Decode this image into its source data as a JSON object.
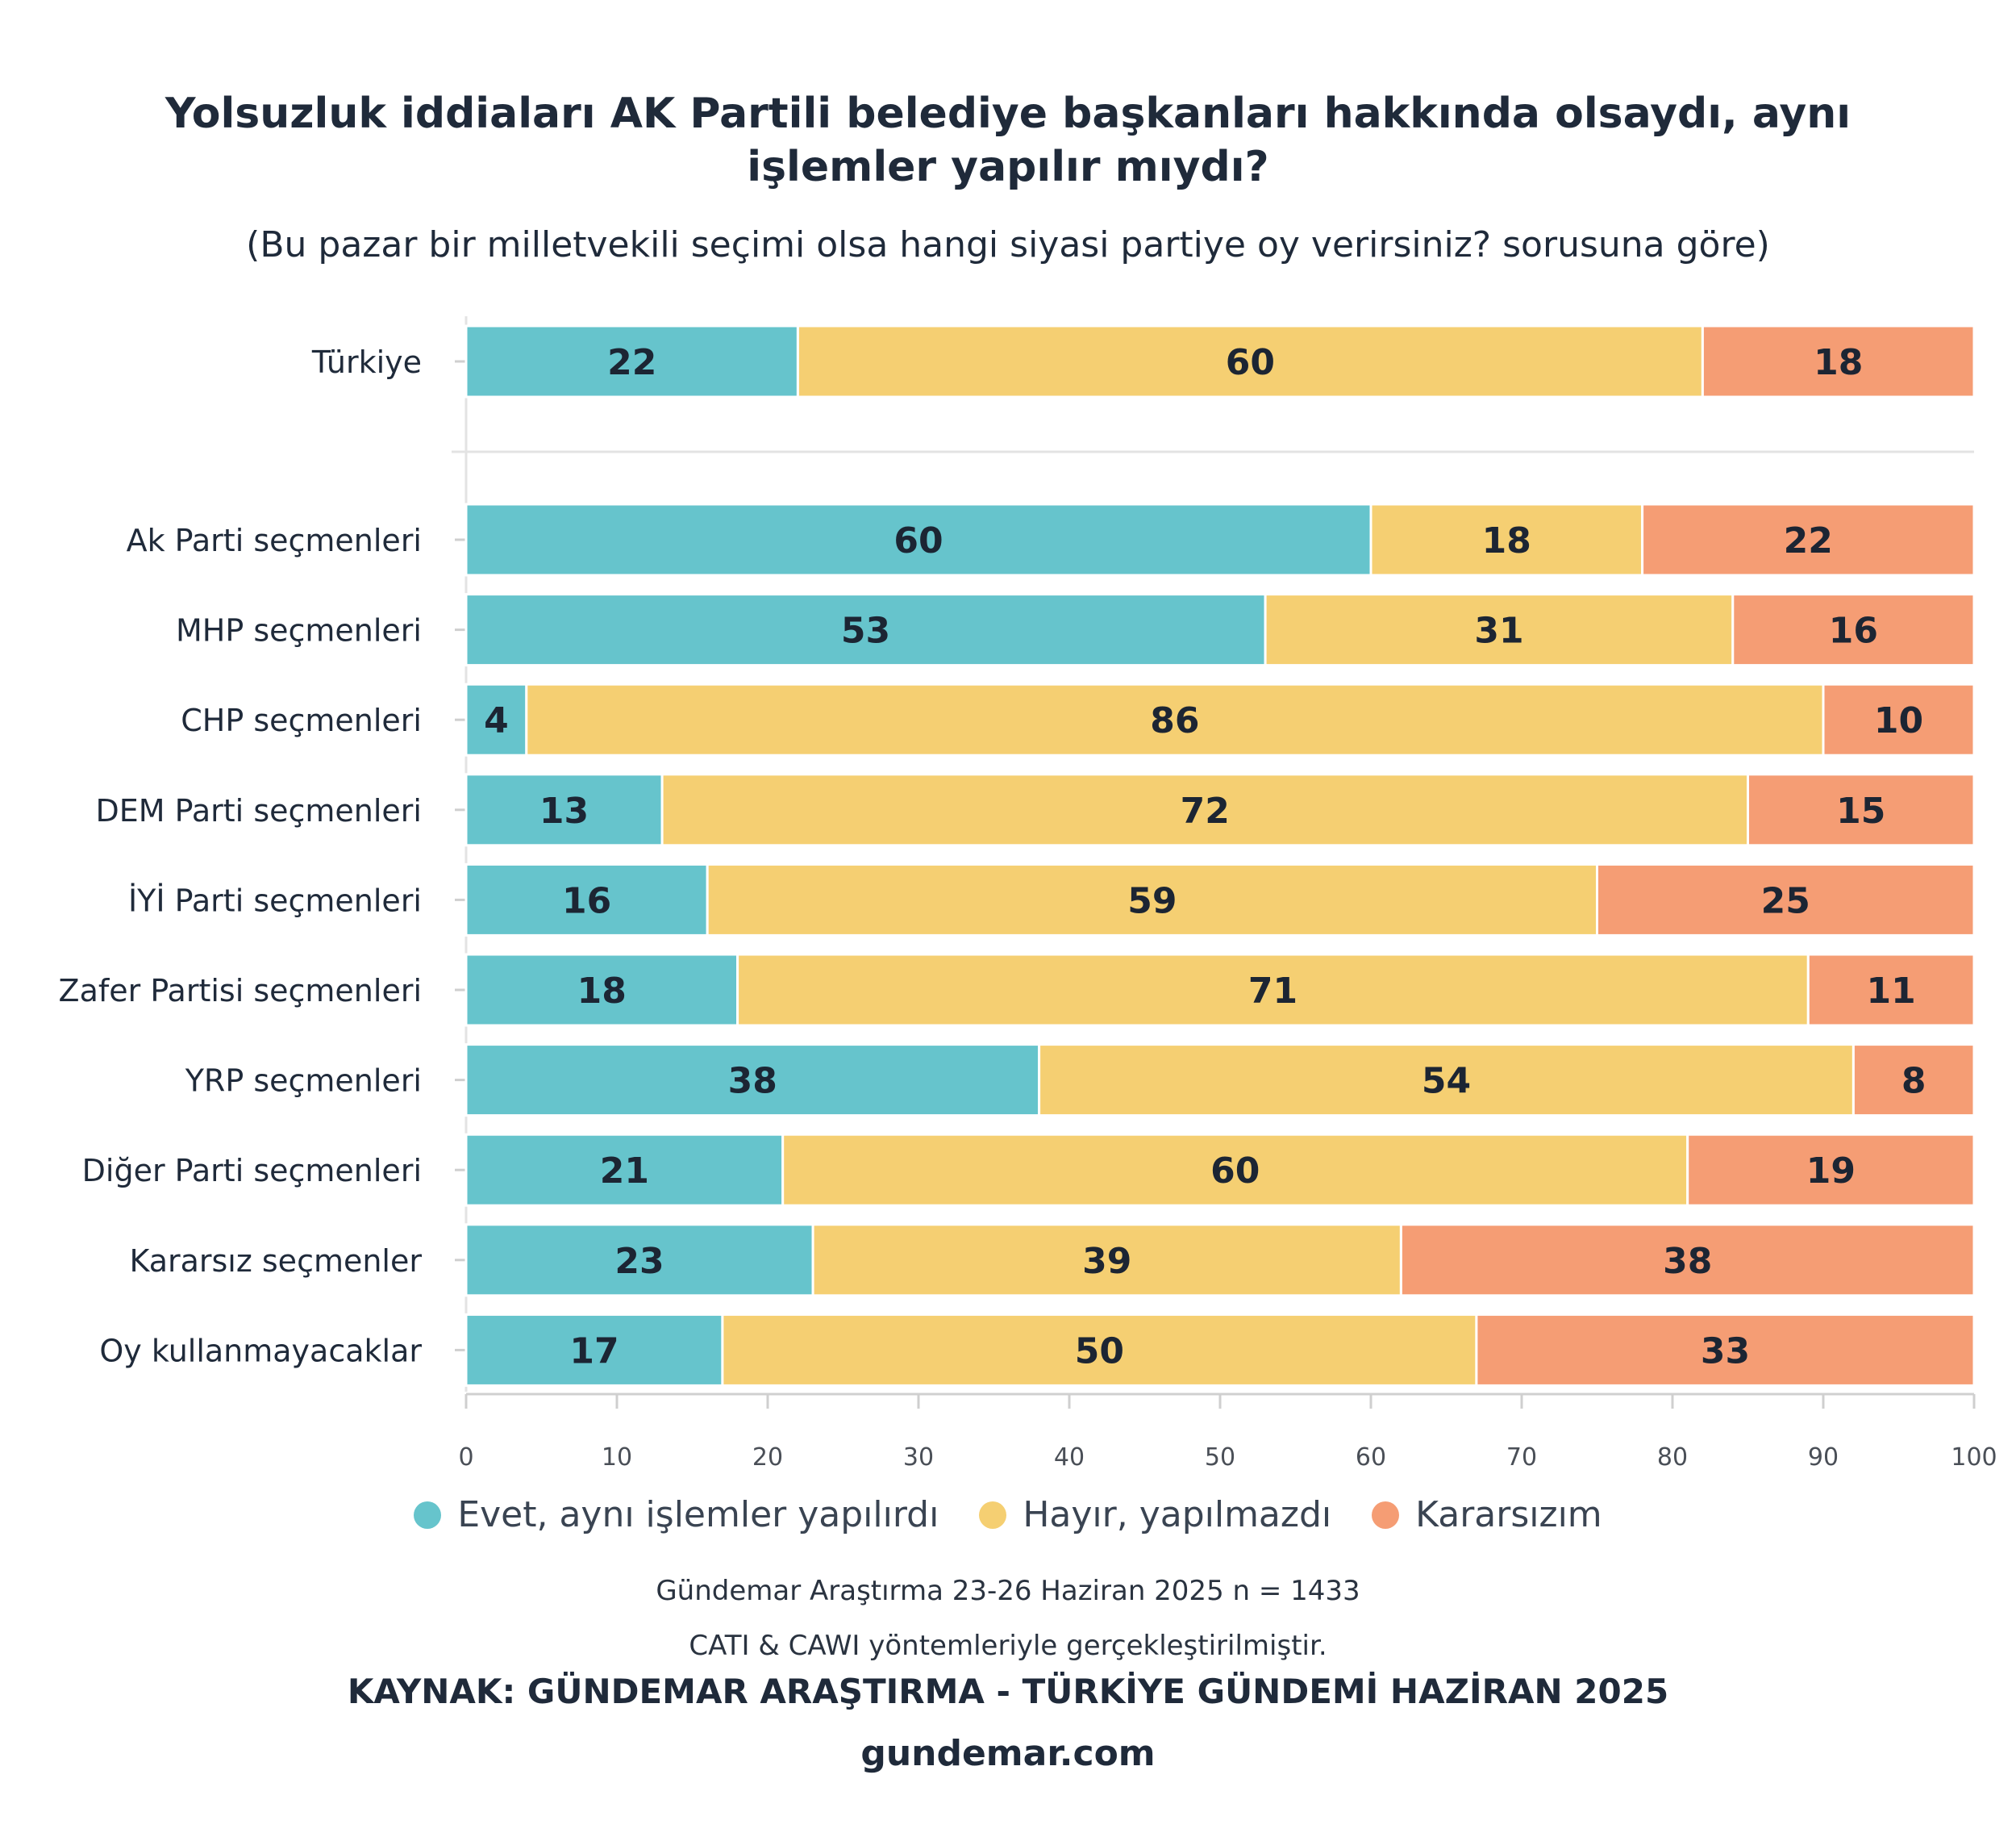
{
  "chart_data": {
    "type": "bar",
    "orientation": "horizontal-stacked",
    "title": "Yolsuzluk iddiaları AK Partili belediye başkanları hakkında olsaydı, aynı işlemler yapılır mıydı?",
    "title_line1": "Yolsuzluk iddiaları AK Partili belediye başkanları hakkında olsaydı, aynı",
    "title_line2": "işlemler yapılır mıydı?",
    "subtitle": "(Bu pazar bir milletvekili seçimi olsa hangi siyasi partiye oy verirsiniz? sorusuna göre)",
    "categories": [
      "Türkiye",
      "Ak Parti seçmenleri",
      "MHP seçmenleri",
      "CHP seçmenleri",
      "DEM Parti seçmenleri",
      "İYİ Parti seçmenleri",
      "Zafer Partisi seçmenleri",
      "YRP seçmenleri",
      "Diğer Parti seçmenleri",
      "Kararsız seçmenler",
      "Oy kullanmayacaklar"
    ],
    "series": [
      {
        "name": "Evet, aynı işlemler yapılırdı",
        "color": "#66c4cc",
        "values": [
          22,
          60,
          53,
          4,
          13,
          16,
          18,
          38,
          21,
          23,
          17
        ]
      },
      {
        "name": "Hayır, yapılmazdı",
        "color": "#f5cf72",
        "values": [
          60,
          18,
          31,
          86,
          72,
          59,
          71,
          54,
          60,
          39,
          50
        ]
      },
      {
        "name": "Kararsızım",
        "color": "#f59d74",
        "values": [
          18,
          22,
          16,
          10,
          15,
          25,
          11,
          8,
          19,
          38,
          33
        ]
      }
    ],
    "xlim": [
      0,
      100
    ],
    "xticks": [
      0,
      10,
      20,
      30,
      40,
      50,
      60,
      70,
      80,
      90,
      100
    ],
    "grid": false,
    "legend_position": "bottom"
  },
  "footer": {
    "note1": "Gündemar Araştırma 23-26 Haziran 2025 n = 1433",
    "note2": "CATI & CAWI yöntemleriyle gerçekleştirilmiştir.",
    "source": "KAYNAK: GÜNDEMAR ARAŞTIRMA - TÜRKİYE GÜNDEMİ HAZİRAN 2025",
    "site": "gundemar.com"
  }
}
